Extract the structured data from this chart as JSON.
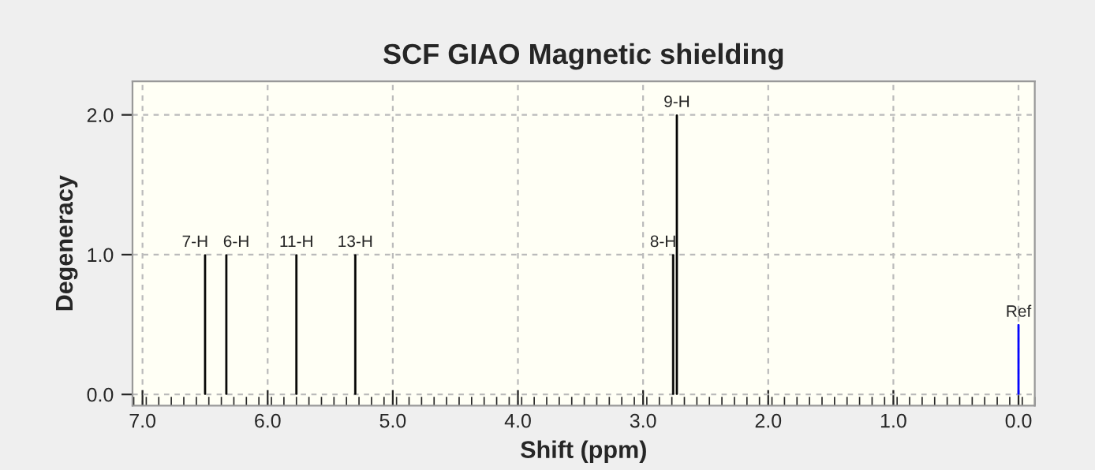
{
  "chart_data": {
    "type": "bar",
    "title": "SCF GIAO Magnetic shielding",
    "xlabel": "Shift (ppm)",
    "ylabel": "Degeneracy",
    "x": [
      6.5,
      6.33,
      5.77,
      5.3,
      2.76,
      2.73,
      0.0
    ],
    "values": [
      1,
      1,
      1,
      1,
      1,
      2,
      0.5
    ],
    "colors": [
      "#000000",
      "#000000",
      "#000000",
      "#000000",
      "#000000",
      "#000000",
      "#0000ff"
    ],
    "annotations": [
      {
        "text": "7-H",
        "x": 6.5,
        "y": 1
      },
      {
        "text": "6-H",
        "x": 6.33,
        "y": 1
      },
      {
        "text": "11-H",
        "x": 5.77,
        "y": 1
      },
      {
        "text": "13-H",
        "x": 5.3,
        "y": 1
      },
      {
        "text": "8-H",
        "x": 2.76,
        "y": 1
      },
      {
        "text": "9-H",
        "x": 2.73,
        "y": 2
      },
      {
        "text": "Ref",
        "x": 0.0,
        "y": 0.5
      }
    ],
    "xlim": [
      7.08,
      -0.13
    ],
    "ylim": [
      -0.08,
      2.24
    ],
    "xticks": [
      {
        "value": 7,
        "label": "7.0"
      },
      {
        "value": 6,
        "label": "6.0"
      },
      {
        "value": 5,
        "label": "5.0"
      },
      {
        "value": 4,
        "label": "4.0"
      },
      {
        "value": 3,
        "label": "3.0"
      },
      {
        "value": 2,
        "label": "2.0"
      },
      {
        "value": 1,
        "label": "1.0"
      },
      {
        "value": 0,
        "label": "0.0"
      }
    ],
    "yticks": [
      {
        "value": 0,
        "label": "0.0"
      },
      {
        "value": 1,
        "label": "1.0"
      },
      {
        "value": 2,
        "label": "2.0"
      }
    ],
    "grid": true
  }
}
